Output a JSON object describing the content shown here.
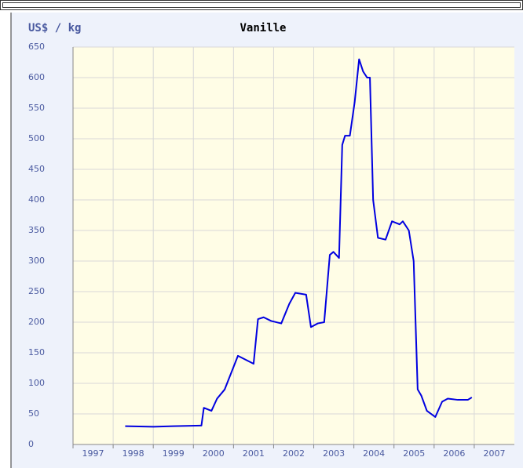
{
  "chart_data": {
    "type": "line",
    "title": "Vanille",
    "ylabel": "US$ / kg",
    "series": [
      {
        "name": "Vanille",
        "color": "#0000e0",
        "x": [
          1998.3,
          1999.0,
          1999.5,
          2000.2,
          2000.26,
          2000.45,
          2000.59,
          2000.78,
          2001.11,
          2001.5,
          2001.61,
          2001.75,
          2001.94,
          2002.19,
          2002.39,
          2002.54,
          2002.81,
          2002.93,
          2003.1,
          2003.26,
          2003.4,
          2003.49,
          2003.63,
          2003.71,
          2003.78,
          2003.9,
          2004.02,
          2004.13,
          2004.23,
          2004.33,
          2004.4,
          2004.48,
          2004.6,
          2004.79,
          2004.95,
          2005.14,
          2005.22,
          2005.37,
          2005.49,
          2005.59,
          2005.68,
          2005.82,
          2006.03,
          2006.2,
          2006.34,
          2006.59,
          2006.84,
          2006.94
        ],
        "values": [
          30,
          29,
          30,
          31,
          60,
          55,
          75,
          90,
          145,
          132,
          205,
          208,
          202,
          198,
          230,
          248,
          245,
          192,
          198,
          200,
          310,
          315,
          305,
          490,
          505,
          505,
          560,
          630,
          610,
          600,
          600,
          400,
          338,
          335,
          365,
          360,
          365,
          350,
          300,
          90,
          80,
          55,
          45,
          70,
          75,
          73,
          73,
          77
        ]
      }
    ],
    "xlim": [
      1997,
      2008
    ],
    "xticks": [
      1997,
      1998,
      1999,
      2000,
      2001,
      2002,
      2003,
      2004,
      2005,
      2006,
      2007
    ],
    "ylim": [
      0,
      650
    ],
    "yticks": [
      0,
      50,
      100,
      150,
      200,
      250,
      300,
      350,
      400,
      450,
      500,
      550,
      600,
      650
    ],
    "grid": true
  }
}
